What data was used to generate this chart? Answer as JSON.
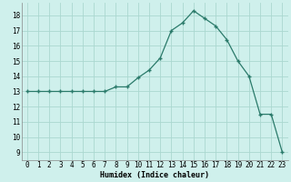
{
  "x": [
    0,
    1,
    2,
    3,
    4,
    5,
    6,
    7,
    8,
    9,
    10,
    11,
    12,
    13,
    14,
    15,
    16,
    17,
    18,
    19,
    20,
    21,
    22,
    23
  ],
  "y": [
    13,
    13,
    13,
    13,
    13,
    13,
    13,
    13,
    13.3,
    13.3,
    13.9,
    14.4,
    15.2,
    17.0,
    17.5,
    18.3,
    17.8,
    17.3,
    16.4,
    15.0,
    14.0,
    11.5,
    11.5,
    9.0
  ],
  "line_color": "#2a7a6a",
  "marker_color": "#2a7a6a",
  "bg_color": "#cff0ec",
  "grid_color": "#aad8d0",
  "xlabel": "Humidex (Indice chaleur)",
  "xlim": [
    -0.5,
    23.5
  ],
  "ylim": [
    8.5,
    18.8
  ],
  "yticks": [
    9,
    10,
    11,
    12,
    13,
    14,
    15,
    16,
    17,
    18
  ],
  "xticks": [
    0,
    1,
    2,
    3,
    4,
    5,
    6,
    7,
    8,
    9,
    10,
    11,
    12,
    13,
    14,
    15,
    16,
    17,
    18,
    19,
    20,
    21,
    22,
    23
  ],
  "tick_fontsize": 5.5,
  "xlabel_fontsize": 6.0
}
